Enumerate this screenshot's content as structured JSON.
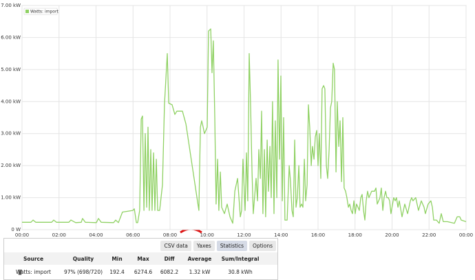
{
  "chart_data": {
    "type": "line",
    "x": [
      0,
      0.48,
      0.6,
      0.74,
      1.6,
      1.71,
      1.86,
      2.53,
      2.64,
      2.9,
      3.2,
      3.27,
      3.42,
      4.02,
      4.13,
      4.28,
      4.95,
      5.06,
      5.21,
      5.43,
      5.99,
      6.07,
      6.18,
      6.25,
      6.36,
      6.44,
      6.51,
      6.59,
      6.66,
      6.74,
      6.81,
      6.88,
      6.96,
      7.03,
      7.11,
      7.18,
      7.26,
      7.33,
      7.44,
      7.59,
      7.7,
      7.85,
      7.93,
      8.11,
      8.26,
      8.37,
      8.67,
      8.86,
      9.56,
      9.64,
      9.71,
      9.79,
      9.86,
      10.01,
      10.08,
      10.2,
      10.27,
      10.34,
      10.42,
      10.49,
      10.57,
      10.64,
      10.72,
      10.79,
      10.94,
      11.09,
      11.24,
      11.39,
      11.5,
      11.65,
      11.8,
      11.87,
      11.94,
      12.06,
      12.13,
      12.2,
      12.28,
      12.35,
      12.43,
      12.5,
      12.65,
      12.73,
      12.8,
      12.88,
      12.95,
      13.02,
      13.1,
      13.17,
      13.25,
      13.32,
      13.4,
      13.47,
      13.54,
      13.62,
      13.69,
      13.77,
      13.84,
      13.92,
      13.99,
      14.07,
      14.14,
      14.21,
      14.33,
      14.44,
      14.51,
      14.59,
      14.66,
      14.74,
      14.81,
      14.88,
      14.96,
      15.03,
      15.11,
      15.18,
      15.26,
      15.33,
      15.41,
      15.48,
      15.55,
      15.63,
      15.7,
      15.78,
      15.85,
      15.93,
      16.0,
      16.07,
      16.15,
      16.22,
      16.3,
      16.37,
      16.45,
      16.52,
      16.6,
      16.67,
      16.74,
      16.82,
      16.89,
      16.97,
      17.04,
      17.12,
      17.19,
      17.27,
      17.34,
      17.41,
      17.49,
      17.56,
      17.64,
      17.71,
      17.79,
      17.86,
      17.94,
      18.01,
      18.08,
      18.16,
      18.23,
      18.31,
      18.38,
      18.46,
      18.53,
      18.6,
      18.68,
      18.75,
      18.9,
      19.05,
      19.13,
      19.2,
      19.35,
      19.42,
      19.5,
      19.57,
      19.65,
      19.72,
      19.8,
      19.87,
      19.94,
      20.09,
      20.17,
      20.24,
      20.32,
      20.39,
      20.54,
      20.69,
      20.84,
      20.99,
      21.06,
      21.13,
      21.28,
      21.43,
      21.58,
      21.73,
      21.8,
      21.95,
      22.1,
      22.18,
      22.25,
      22.4,
      22.55,
      22.66,
      22.77,
      22.99,
      23.37,
      23.52,
      23.66,
      23.74,
      24.0
    ],
    "series": [
      {
        "name": "Watts: import",
        "color": "#8fd163",
        "values": [
          230,
          230,
          300,
          230,
          230,
          300,
          230,
          230,
          300,
          220,
          230,
          350,
          230,
          220,
          350,
          230,
          220,
          300,
          220,
          550,
          600,
          650,
          220,
          220,
          600,
          3450,
          3550,
          600,
          3000,
          700,
          3200,
          600,
          2500,
          600,
          2400,
          600,
          2200,
          600,
          600,
          1400,
          3900,
          5500,
          3950,
          3900,
          3600,
          3700,
          3700,
          3300,
          600,
          3200,
          3400,
          3200,
          3000,
          3200,
          6200,
          6270,
          4900,
          5900,
          3500,
          800,
          2200,
          600,
          1800,
          700,
          500,
          800,
          400,
          200,
          1200,
          1600,
          400,
          600,
          2200,
          600,
          2400,
          900,
          5500,
          4000,
          1800,
          500,
          1600,
          900,
          2500,
          1600,
          3700,
          500,
          2500,
          400,
          2800,
          1200,
          2600,
          1000,
          4000,
          500,
          3400,
          1000,
          5300,
          2200,
          4800,
          900,
          3500,
          300,
          300,
          2000,
          1500,
          600,
          400,
          2800,
          700,
          1000,
          2000,
          700,
          800,
          700,
          2200,
          900,
          1400,
          3900,
          3200,
          2000,
          2600,
          2200,
          2900,
          3100,
          2000,
          3000,
          1600,
          4400,
          4500,
          4400,
          2000,
          1600,
          2500,
          3800,
          4000,
          5200,
          5000,
          1800,
          4000,
          2600,
          3400,
          1500,
          3500,
          1300,
          1200,
          1000,
          700,
          800,
          600,
          500,
          900,
          500,
          800,
          700,
          600,
          1000,
          1100,
          600,
          300,
          900,
          1200,
          1000,
          1200,
          1200,
          1300,
          800,
          1000,
          1300,
          600,
          1000,
          1200,
          1000,
          1000,
          900,
          500,
          1000,
          900,
          1000,
          700,
          900,
          400,
          800,
          500,
          900,
          1000,
          900,
          1000,
          600,
          900,
          700,
          500,
          800,
          900,
          700,
          300,
          300,
          200,
          500,
          250,
          250,
          200,
          400,
          400,
          300,
          250
        ]
      }
    ],
    "xlim": [
      0,
      24
    ],
    "xticks": [
      {
        "value": 0,
        "label": "00:00"
      },
      {
        "value": 2,
        "label": "02:00"
      },
      {
        "value": 4,
        "label": "04:00"
      },
      {
        "value": 6,
        "label": "06:00"
      },
      {
        "value": 8,
        "label": "08:00"
      },
      {
        "value": 10,
        "label": "10:00"
      },
      {
        "value": 12,
        "label": "12:00"
      },
      {
        "value": 14,
        "label": "14:00"
      },
      {
        "value": 16,
        "label": "16:00"
      },
      {
        "value": 18,
        "label": "18:00"
      },
      {
        "value": 20,
        "label": "20:00"
      },
      {
        "value": 22,
        "label": "22:00"
      },
      {
        "value": 24,
        "label": "00:00"
      }
    ],
    "ylim": [
      0,
      7000
    ],
    "yticks": [
      {
        "value": 0,
        "label": "0 W"
      },
      {
        "value": 1000,
        "label": "1.00 kW"
      },
      {
        "value": 2000,
        "label": "2.00 kW"
      },
      {
        "value": 3000,
        "label": "3.00 kW"
      },
      {
        "value": 4000,
        "label": "4.00 kW"
      },
      {
        "value": 5000,
        "label": "5.00 kW"
      },
      {
        "value": 6000,
        "label": "6.00 kW"
      },
      {
        "value": 7000,
        "label": "7.00 kW"
      }
    ],
    "grid": true,
    "legend": "top-left"
  },
  "table": {
    "buttons": [
      "CSV data",
      "Yaxes",
      "Statistics",
      "Options"
    ],
    "columns": [
      "Source",
      "Quality",
      "Min",
      "Max",
      "Diff",
      "Average",
      "Sum/Integral"
    ],
    "rows": [
      [
        "Watts: import",
        "97% (698/720)",
        "192.4",
        "6274.6",
        "6082.2",
        "1.32 kW",
        "30.8 kWh"
      ]
    ]
  }
}
